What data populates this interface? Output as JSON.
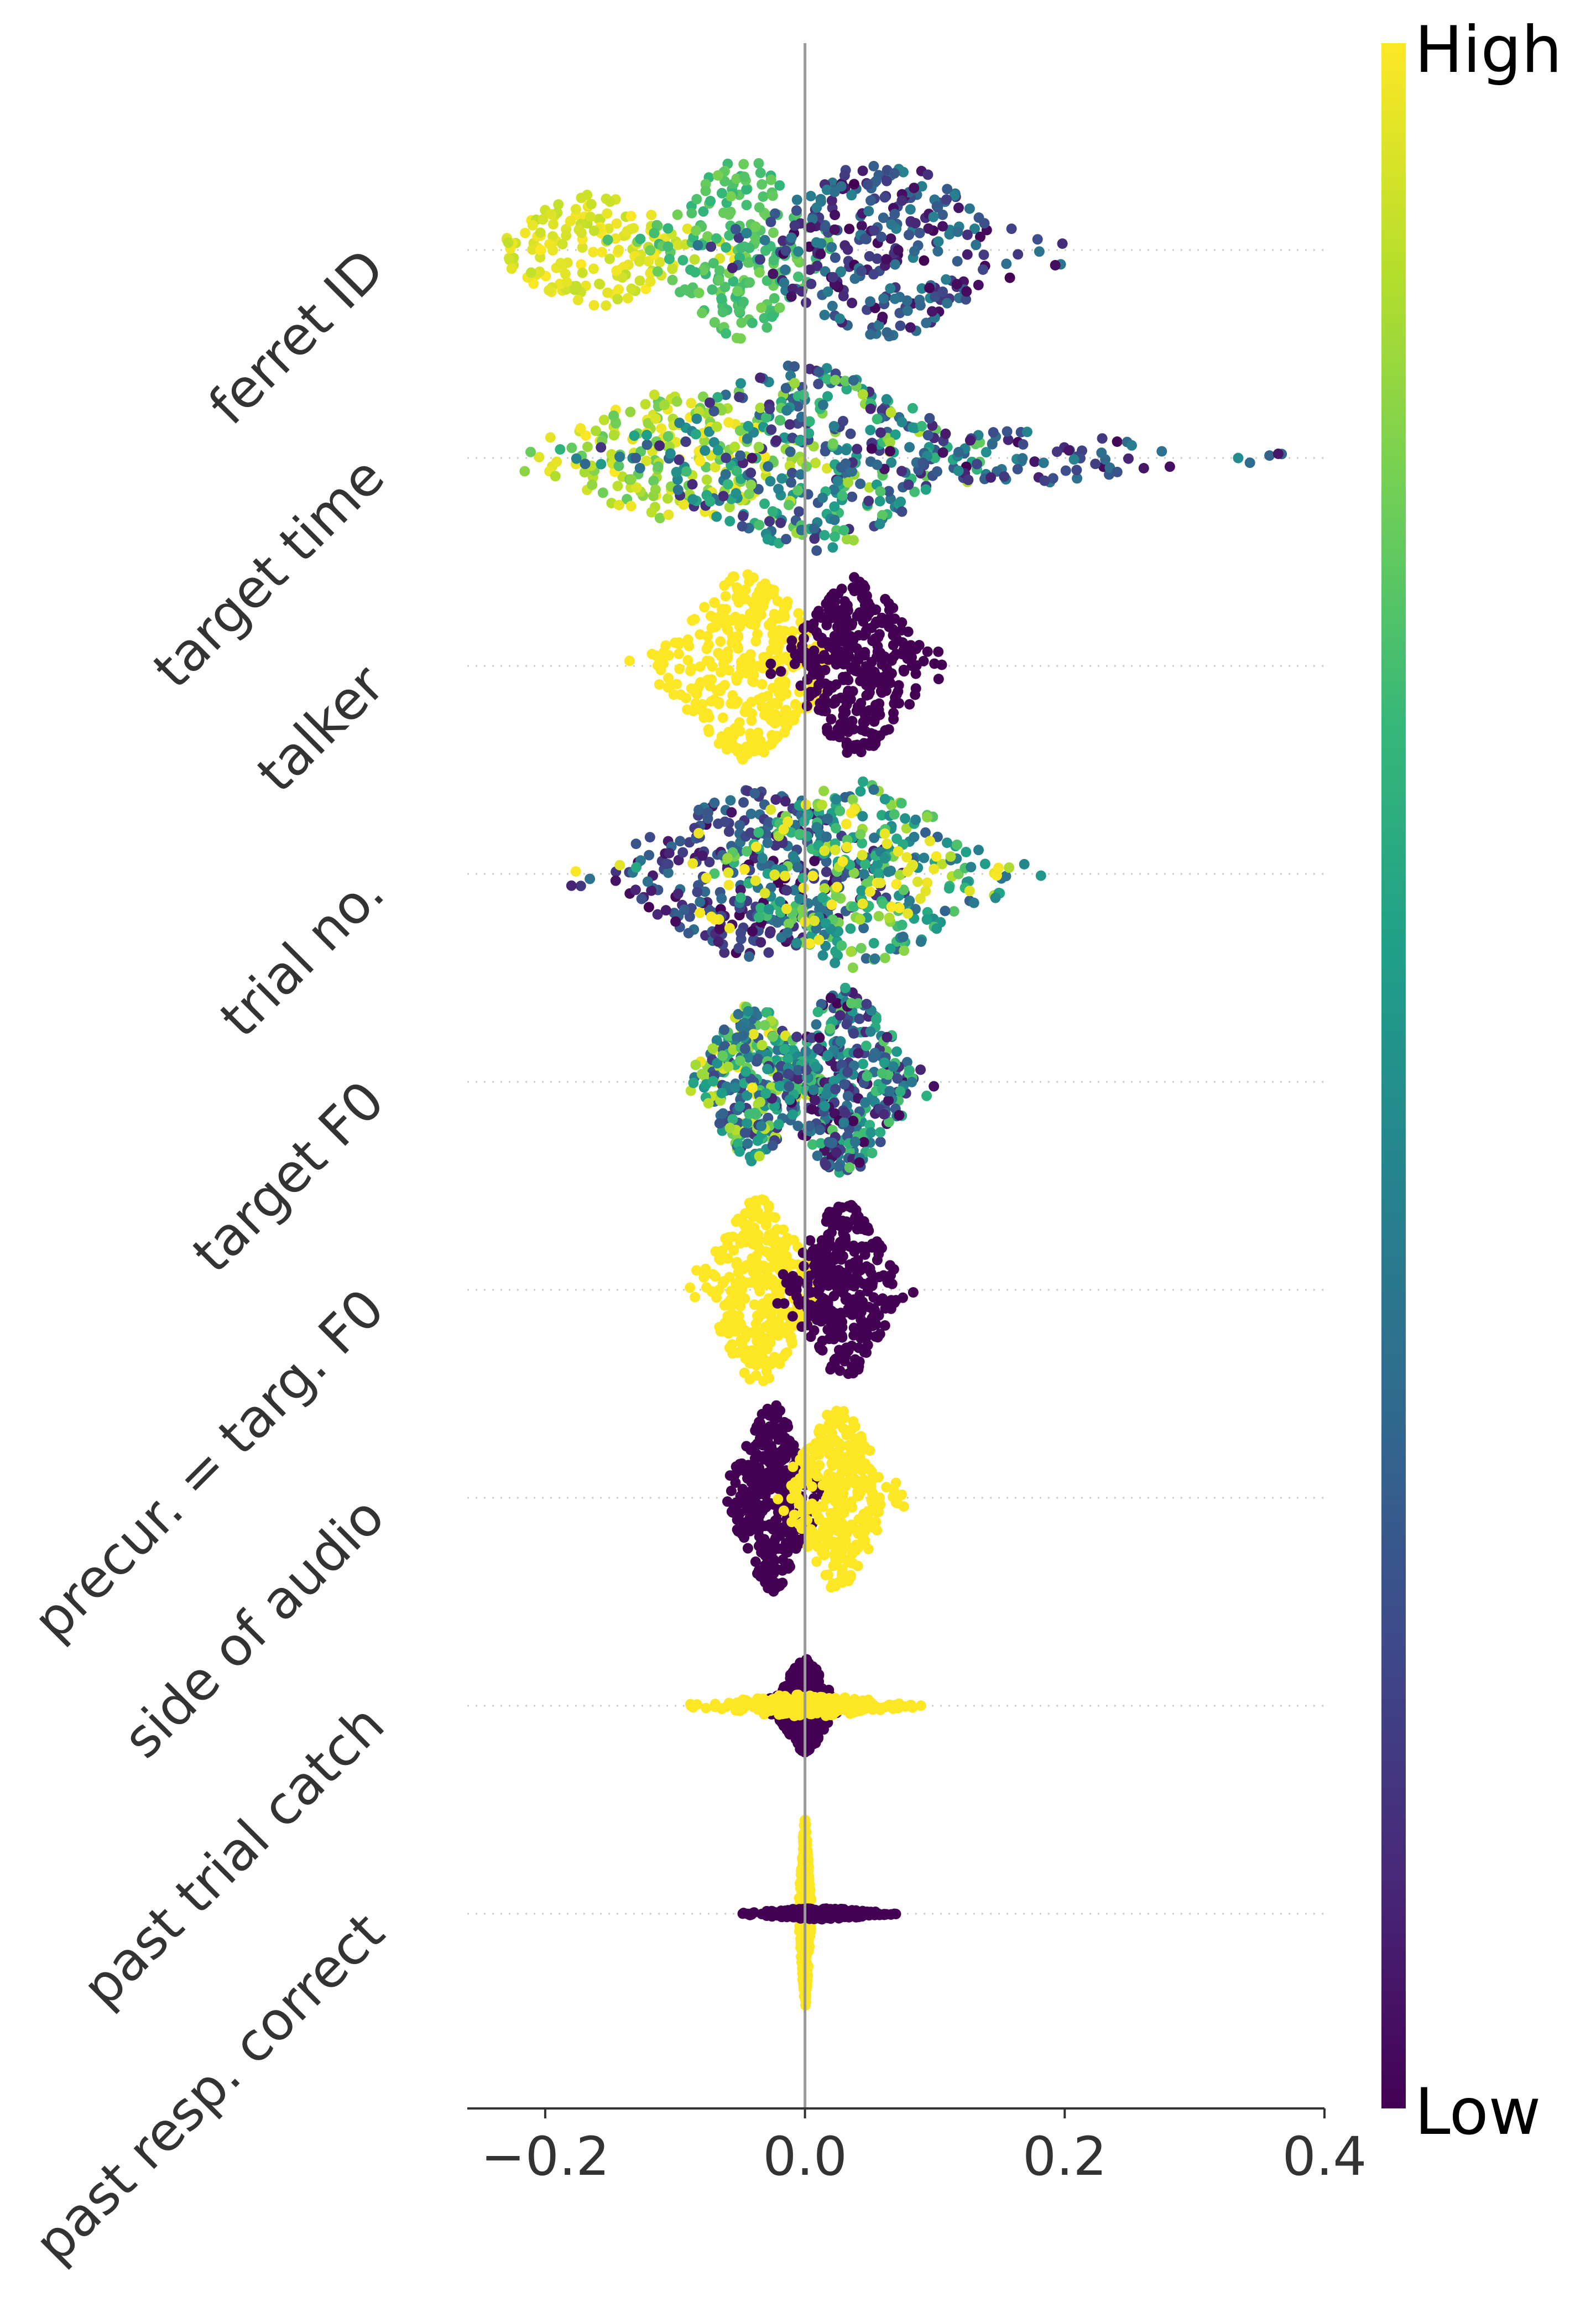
{
  "chart_data": {
    "type": "scatter",
    "subtype": "beeswarm",
    "xlim": [
      -0.26,
      0.4
    ],
    "xticks": [
      -0.2,
      0.0,
      0.2,
      0.4
    ],
    "xtick_labels": [
      "−0.2",
      "0.0",
      "0.2",
      "0.4"
    ],
    "grid": false,
    "colorbar": {
      "colormap": "viridis",
      "high_label": "High",
      "low_label": "Low",
      "stops": [
        "#440154",
        "#482878",
        "#3e4989",
        "#31688e",
        "#26828e",
        "#1f9e89",
        "#35b779",
        "#6ece58",
        "#b5de2b",
        "#fde725"
      ]
    },
    "features": [
      {
        "name": "ferret ID",
        "min": -0.23,
        "max": 0.2,
        "spread": 0.06,
        "groups": [
          {
            "center": -0.16,
            "sd": 0.04,
            "color_lo": 0.9,
            "color_hi": 1.0,
            "share": 0.25,
            "width": 0.6
          },
          {
            "center": -0.05,
            "sd": 0.03,
            "color_lo": 0.65,
            "color_hi": 0.8,
            "share": 0.3,
            "width": 1.0
          },
          {
            "center": 0.06,
            "sd": 0.05,
            "color_lo": 0.0,
            "color_hi": 0.45,
            "share": 0.45,
            "width": 0.95
          }
        ]
      },
      {
        "name": "target time",
        "min": -0.22,
        "max": 0.37,
        "spread": 0.06,
        "groups": [
          {
            "center": -0.1,
            "sd": 0.05,
            "color_lo": 0.75,
            "color_hi": 1.0,
            "share": 0.3,
            "width": 0.7
          },
          {
            "center": 0.0,
            "sd": 0.06,
            "color_lo": 0.1,
            "color_hi": 0.9,
            "share": 0.55,
            "width": 1.0
          },
          {
            "center": 0.15,
            "sd": 0.08,
            "color_lo": 0.0,
            "color_hi": 0.5,
            "share": 0.15,
            "width": 0.3
          }
        ]
      },
      {
        "name": "talker",
        "min": -0.15,
        "max": 0.17,
        "spread": 0.045,
        "groups": [
          {
            "center": -0.045,
            "sd": 0.03,
            "color_lo": 1.0,
            "color_hi": 1.0,
            "share": 0.5,
            "width": 1.0
          },
          {
            "center": 0.04,
            "sd": 0.025,
            "color_lo": 0.0,
            "color_hi": 0.0,
            "share": 0.5,
            "width": 0.95
          }
        ]
      },
      {
        "name": "trial no.",
        "min": -0.2,
        "max": 0.19,
        "spread": 0.07,
        "groups": [
          {
            "center": -0.04,
            "sd": 0.05,
            "color_lo": 0.0,
            "color_hi": 0.4,
            "share": 0.45,
            "width": 0.9
          },
          {
            "center": 0.04,
            "sd": 0.05,
            "color_lo": 0.3,
            "color_hi": 0.9,
            "share": 0.45,
            "width": 1.0
          },
          {
            "center": 0.0,
            "sd": 0.06,
            "color_lo": 0.95,
            "color_hi": 1.0,
            "share": 0.1,
            "width": 0.8
          }
        ]
      },
      {
        "name": "target F0",
        "min": -0.09,
        "max": 0.11,
        "spread": 0.045,
        "groups": [
          {
            "center": -0.04,
            "sd": 0.02,
            "color_lo": 0.15,
            "color_hi": 1.0,
            "share": 0.45,
            "width": 0.85
          },
          {
            "center": 0.03,
            "sd": 0.025,
            "color_lo": 0.0,
            "color_hi": 0.75,
            "share": 0.55,
            "width": 1.0
          }
        ]
      },
      {
        "name": "precur. = targ. F0",
        "min": -0.09,
        "max": 0.09,
        "spread": 0.045,
        "groups": [
          {
            "center": -0.035,
            "sd": 0.02,
            "color_lo": 1.0,
            "color_hi": 1.0,
            "share": 0.5,
            "width": 1.0
          },
          {
            "center": 0.03,
            "sd": 0.02,
            "color_lo": 0.0,
            "color_hi": 0.0,
            "share": 0.5,
            "width": 0.95
          }
        ]
      },
      {
        "name": "side of audio",
        "min": -0.06,
        "max": 0.08,
        "spread": 0.045,
        "groups": [
          {
            "center": -0.025,
            "sd": 0.015,
            "color_lo": 0.0,
            "color_hi": 0.0,
            "share": 0.5,
            "width": 1.0
          },
          {
            "center": 0.025,
            "sd": 0.018,
            "color_lo": 1.0,
            "color_hi": 1.0,
            "share": 0.5,
            "width": 1.0
          }
        ]
      },
      {
        "name": "past trial catch",
        "min": -0.09,
        "max": 0.09,
        "spread": 0.04,
        "groups": [
          {
            "center": 0.0,
            "sd": 0.01,
            "color_lo": 0.0,
            "color_hi": 0.0,
            "share": 0.6,
            "width": 0.5
          },
          {
            "center": 0.0,
            "sd": 0.035,
            "color_lo": 1.0,
            "color_hi": 1.0,
            "share": 0.4,
            "width": 0.12
          }
        ]
      },
      {
        "name": "past resp. correct",
        "min": -0.05,
        "max": 0.07,
        "spread": 0.045,
        "groups": [
          {
            "center": 0.0,
            "sd": 0.002,
            "color_lo": 1.0,
            "color_hi": 1.0,
            "share": 0.6,
            "width": 1.0
          },
          {
            "center": 0.01,
            "sd": 0.025,
            "color_lo": 0.0,
            "color_hi": 0.0,
            "share": 0.4,
            "width": 0.06
          }
        ]
      }
    ]
  }
}
